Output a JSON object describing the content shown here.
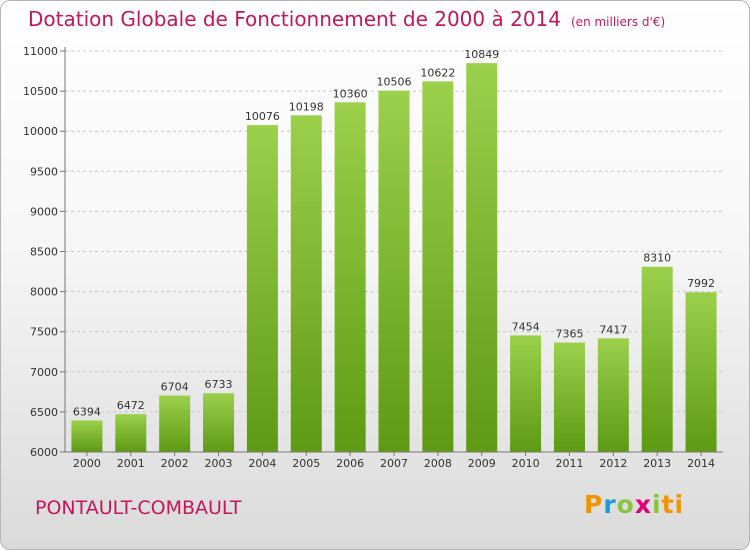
{
  "title": "Dotation Globale de Fonctionnement de 2000 à 2014",
  "subtitle": "(en milliers d'€)",
  "city": "PONTAULT-COMBAULT",
  "logo": {
    "letters": [
      "P",
      "r",
      "o",
      "x",
      "i",
      "ti"
    ]
  },
  "colors": {
    "title": "#c2185b",
    "bar_top": "#9bd04b",
    "bar_bottom": "#5e9a14",
    "logo": [
      "#f29400",
      "#1a9bd7",
      "#8bc53f",
      "#e2007a",
      "#8bc53f",
      "#f29400"
    ]
  },
  "chart_data": {
    "type": "bar",
    "categories": [
      "2000",
      "2001",
      "2002",
      "2003",
      "2004",
      "2005",
      "2006",
      "2007",
      "2008",
      "2009",
      "2010",
      "2011",
      "2012",
      "2013",
      "2014"
    ],
    "values": [
      6394,
      6472,
      6704,
      6733,
      10076,
      10198,
      10360,
      10506,
      10622,
      10849,
      7454,
      7365,
      7417,
      8310,
      7992
    ],
    "ylim": [
      6000,
      11000
    ],
    "yticks": [
      6000,
      6500,
      7000,
      7500,
      8000,
      8500,
      9000,
      9500,
      10000,
      10500,
      11000
    ],
    "grid": true,
    "title": "Dotation Globale de Fonctionnement de 2000 à 2014",
    "xlabel": "",
    "ylabel": ""
  }
}
